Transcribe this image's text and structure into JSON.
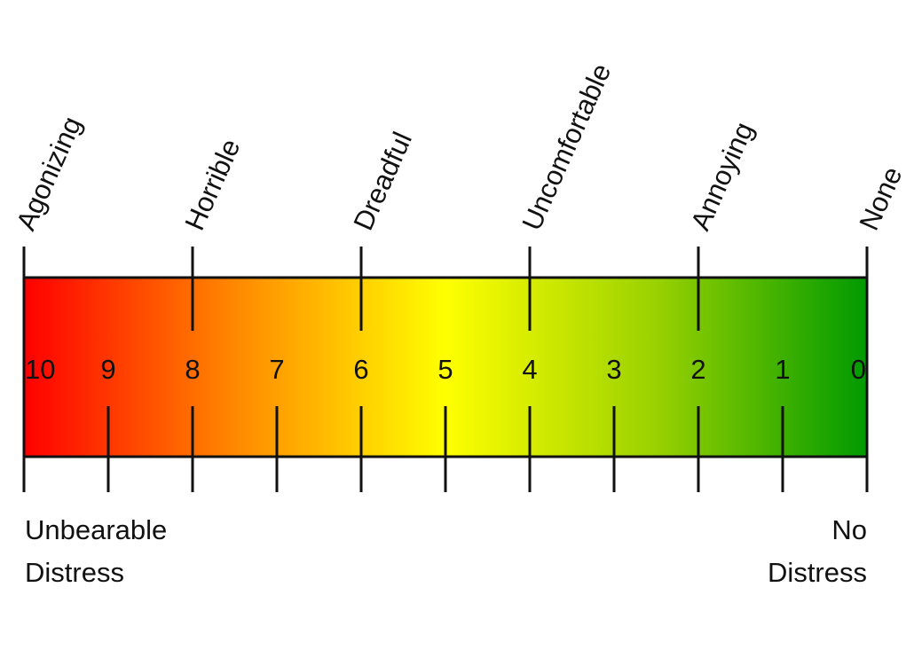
{
  "top_labels": [
    {
      "value": 10,
      "label": "Agonizing"
    },
    {
      "value": 8,
      "label": "Horrible"
    },
    {
      "value": 6,
      "label": "Dreadful"
    },
    {
      "value": 4,
      "label": "Uncomfortable"
    },
    {
      "value": 2,
      "label": "Annoying"
    },
    {
      "value": 0,
      "label": "None"
    }
  ],
  "scale": [
    10,
    9,
    8,
    7,
    6,
    5,
    4,
    3,
    2,
    1,
    0
  ],
  "left_caption": [
    "Unbearable",
    "Distress"
  ],
  "right_caption": [
    "No",
    "Distress"
  ]
}
